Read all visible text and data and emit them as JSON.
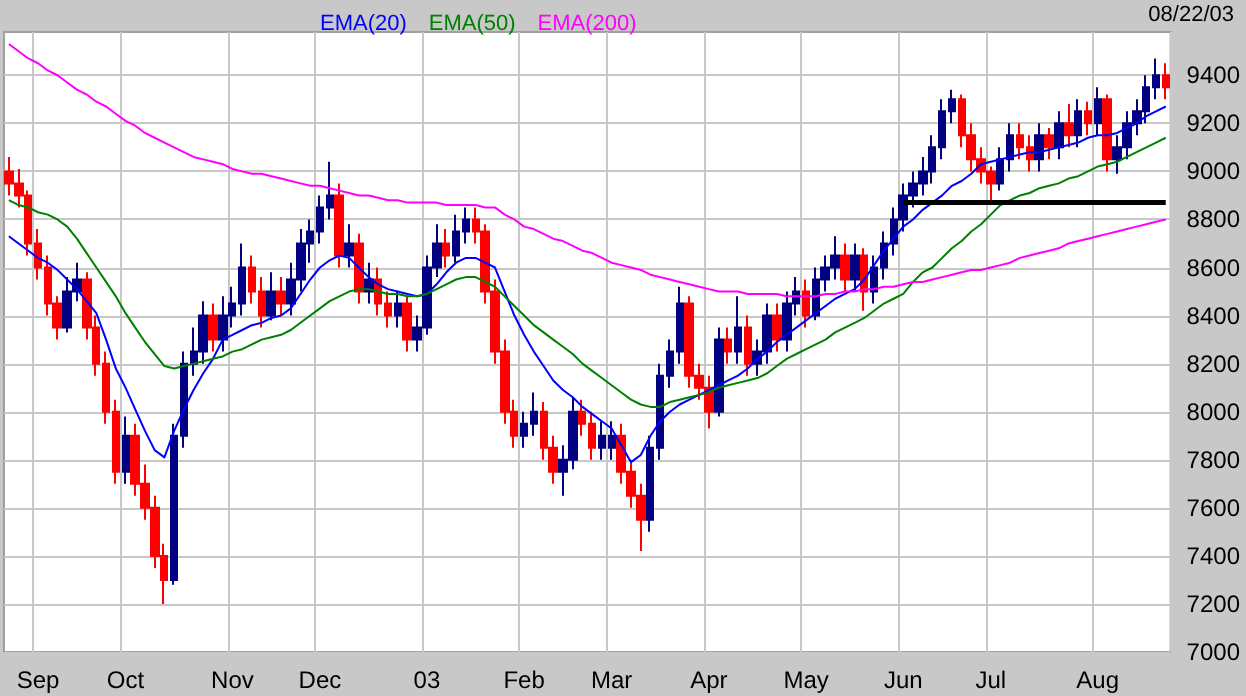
{
  "chart_data": {
    "type": "candlestick",
    "categories": [
      null,
      null,
      null,
      "Sep",
      null,
      null,
      null,
      null,
      null,
      null,
      null,
      null,
      "Oct",
      null,
      null,
      null,
      null,
      null,
      null,
      null,
      null,
      null,
      null,
      "Nov",
      null,
      null,
      null,
      null,
      null,
      null,
      null,
      null,
      "Dec",
      null,
      null,
      null,
      null,
      null,
      null,
      null,
      null,
      null,
      null,
      "03",
      null,
      null,
      null,
      null,
      null,
      null,
      null,
      null,
      null,
      "Feb",
      null,
      null,
      null,
      null,
      null,
      null,
      null,
      null,
      "Mar",
      null,
      null,
      null,
      null,
      null,
      null,
      null,
      null,
      null,
      "Apr",
      null,
      null,
      null,
      null,
      null,
      null,
      null,
      null,
      null,
      "May",
      null,
      null,
      null,
      null,
      null,
      null,
      null,
      null,
      null,
      "Jun",
      null,
      null,
      null,
      null,
      null,
      null,
      null,
      null,
      "Jul",
      null,
      null,
      null,
      null,
      null,
      null,
      null,
      null,
      null,
      null,
      "Aug",
      null,
      null,
      null,
      null,
      null,
      null,
      null
    ],
    "ohlc": [
      [
        9000,
        9060,
        8900,
        8950
      ],
      [
        8950,
        9010,
        8850,
        8900
      ],
      [
        8900,
        8920,
        8650,
        8700
      ],
      [
        8700,
        8760,
        8550,
        8600
      ],
      [
        8600,
        8650,
        8400,
        8450
      ],
      [
        8450,
        8480,
        8300,
        8350
      ],
      [
        8350,
        8560,
        8330,
        8500
      ],
      [
        8500,
        8620,
        8460,
        8550
      ],
      [
        8550,
        8580,
        8300,
        8350
      ],
      [
        8350,
        8400,
        8150,
        8200
      ],
      [
        8200,
        8250,
        7950,
        8000
      ],
      [
        8000,
        8050,
        7700,
        7750
      ],
      [
        7750,
        7980,
        7700,
        7900
      ],
      [
        7900,
        7950,
        7650,
        7700
      ],
      [
        7700,
        7780,
        7550,
        7600
      ],
      [
        7600,
        7650,
        7350,
        7400
      ],
      [
        7400,
        7450,
        7200,
        7300
      ],
      [
        7300,
        7950,
        7280,
        7900
      ],
      [
        7900,
        8250,
        7850,
        8200
      ],
      [
        8200,
        8350,
        8150,
        8250
      ],
      [
        8250,
        8460,
        8200,
        8400
      ],
      [
        8400,
        8450,
        8250,
        8300
      ],
      [
        8300,
        8480,
        8250,
        8400
      ],
      [
        8400,
        8520,
        8350,
        8450
      ],
      [
        8450,
        8700,
        8400,
        8600
      ],
      [
        8600,
        8650,
        8450,
        8500
      ],
      [
        8500,
        8560,
        8350,
        8400
      ],
      [
        8400,
        8580,
        8380,
        8500
      ],
      [
        8500,
        8560,
        8400,
        8450
      ],
      [
        8450,
        8620,
        8400,
        8550
      ],
      [
        8550,
        8760,
        8500,
        8700
      ],
      [
        8700,
        8800,
        8620,
        8750
      ],
      [
        8750,
        8900,
        8700,
        8850
      ],
      [
        8850,
        9040,
        8800,
        8900
      ],
      [
        8900,
        8950,
        8600,
        8650
      ],
      [
        8650,
        8780,
        8600,
        8700
      ],
      [
        8700,
        8740,
        8450,
        8500
      ],
      [
        8500,
        8620,
        8450,
        8550
      ],
      [
        8550,
        8600,
        8400,
        8450
      ],
      [
        8450,
        8500,
        8350,
        8400
      ],
      [
        8400,
        8500,
        8350,
        8450
      ],
      [
        8450,
        8480,
        8250,
        8300
      ],
      [
        8300,
        8400,
        8250,
        8350
      ],
      [
        8350,
        8650,
        8320,
        8600
      ],
      [
        8600,
        8780,
        8560,
        8700
      ],
      [
        8700,
        8760,
        8600,
        8650
      ],
      [
        8650,
        8820,
        8620,
        8750
      ],
      [
        8750,
        8850,
        8700,
        8800
      ],
      [
        8800,
        8850,
        8700,
        8750
      ],
      [
        8750,
        8780,
        8450,
        8500
      ],
      [
        8500,
        8550,
        8200,
        8250
      ],
      [
        8250,
        8300,
        7950,
        8000
      ],
      [
        8000,
        8050,
        7850,
        7900
      ],
      [
        7900,
        8000,
        7850,
        7950
      ],
      [
        7950,
        8080,
        7900,
        8000
      ],
      [
        8000,
        8040,
        7800,
        7850
      ],
      [
        7850,
        7900,
        7700,
        7750
      ],
      [
        7750,
        7860,
        7650,
        7800
      ],
      [
        7800,
        8060,
        7760,
        8000
      ],
      [
        8000,
        8050,
        7900,
        7950
      ],
      [
        7950,
        8000,
        7800,
        7850
      ],
      [
        7850,
        7960,
        7800,
        7900
      ],
      [
        7850,
        7960,
        7800,
        7900
      ],
      [
        7900,
        7950,
        7700,
        7750
      ],
      [
        7750,
        7800,
        7600,
        7650
      ],
      [
        7650,
        7700,
        7420,
        7550
      ],
      [
        7550,
        7900,
        7500,
        7850
      ],
      [
        7850,
        8200,
        7800,
        8150
      ],
      [
        8150,
        8300,
        8100,
        8250
      ],
      [
        8250,
        8520,
        8200,
        8450
      ],
      [
        8450,
        8480,
        8100,
        8150
      ],
      [
        8150,
        8200,
        8050,
        8100
      ],
      [
        8100,
        8150,
        7930,
        8000
      ],
      [
        8000,
        8350,
        7980,
        8300
      ],
      [
        8300,
        8350,
        8200,
        8250
      ],
      [
        8250,
        8480,
        8200,
        8350
      ],
      [
        8350,
        8400,
        8150,
        8200
      ],
      [
        8200,
        8300,
        8150,
        8250
      ],
      [
        8250,
        8450,
        8200,
        8400
      ],
      [
        8400,
        8450,
        8250,
        8300
      ],
      [
        8300,
        8500,
        8250,
        8450
      ],
      [
        8450,
        8560,
        8400,
        8500
      ],
      [
        8500,
        8550,
        8350,
        8400
      ],
      [
        8400,
        8600,
        8380,
        8550
      ],
      [
        8550,
        8650,
        8500,
        8600
      ],
      [
        8600,
        8730,
        8550,
        8650
      ],
      [
        8650,
        8700,
        8500,
        8550
      ],
      [
        8550,
        8700,
        8500,
        8650
      ],
      [
        8650,
        8680,
        8420,
        8500
      ],
      [
        8500,
        8650,
        8450,
        8600
      ],
      [
        8600,
        8750,
        8550,
        8700
      ],
      [
        8700,
        8850,
        8650,
        8800
      ],
      [
        8800,
        8950,
        8750,
        8900
      ],
      [
        8900,
        9000,
        8850,
        8950
      ],
      [
        8950,
        9060,
        8900,
        9000
      ],
      [
        9000,
        9150,
        8950,
        9100
      ],
      [
        9100,
        9300,
        9050,
        9250
      ],
      [
        9250,
        9340,
        9200,
        9300
      ],
      [
        9300,
        9320,
        9100,
        9150
      ],
      [
        9150,
        9200,
        9000,
        9050
      ],
      [
        9050,
        9100,
        8950,
        9000
      ],
      [
        9000,
        9020,
        8870,
        8950
      ],
      [
        8950,
        9100,
        8920,
        9050
      ],
      [
        9050,
        9200,
        9000,
        9150
      ],
      [
        9150,
        9200,
        9050,
        9100
      ],
      [
        9100,
        9150,
        9000,
        9050
      ],
      [
        9050,
        9200,
        9000,
        9150
      ],
      [
        9150,
        9180,
        9050,
        9100
      ],
      [
        9100,
        9250,
        9050,
        9200
      ],
      [
        9200,
        9280,
        9100,
        9150
      ],
      [
        9150,
        9300,
        9100,
        9250
      ],
      [
        9250,
        9290,
        9150,
        9200
      ],
      [
        9200,
        9350,
        9150,
        9300
      ],
      [
        9300,
        9320,
        9000,
        9050
      ],
      [
        9050,
        9150,
        8990,
        9100
      ],
      [
        9100,
        9250,
        9050,
        9200
      ],
      [
        9200,
        9300,
        9150,
        9250
      ],
      [
        9250,
        9400,
        9200,
        9350
      ],
      [
        9350,
        9470,
        9300,
        9400
      ],
      [
        9400,
        9450,
        9300,
        9350
      ]
    ],
    "colors": [
      "#ff0000",
      "#ff0000",
      "#ff0000",
      "#ff0000",
      "#ff0000",
      "#ff0000",
      "#000080",
      "#000080",
      "#ff0000",
      "#ff0000",
      "#ff0000",
      "#ff0000",
      "#000080",
      "#ff0000",
      "#ff0000",
      "#ff0000",
      "#ff0000",
      "#000080",
      "#000080",
      "#000080",
      "#000080",
      "#ff0000",
      "#000080",
      "#000080",
      "#000080",
      "#ff0000",
      "#ff0000",
      "#000080",
      "#ff0000",
      "#000080",
      "#000080",
      "#000080",
      "#000080",
      "#000080",
      "#ff0000",
      "#000080",
      "#ff0000",
      "#000080",
      "#ff0000",
      "#ff0000",
      "#000080",
      "#ff0000",
      "#000080",
      "#000080",
      "#000080",
      "#ff0000",
      "#000080",
      "#000080",
      "#ff0000",
      "#ff0000",
      "#ff0000",
      "#ff0000",
      "#ff0000",
      "#000080",
      "#000080",
      "#ff0000",
      "#ff0000",
      "#000080",
      "#000080",
      "#ff0000",
      "#ff0000",
      "#000080",
      "#000080",
      "#ff0000",
      "#ff0000",
      "#ff0000",
      "#000080",
      "#000080",
      "#000080",
      "#000080",
      "#ff0000",
      "#ff0000",
      "#ff0000",
      "#000080",
      "#ff0000",
      "#000080",
      "#ff0000",
      "#000080",
      "#000080",
      "#ff0000",
      "#000080",
      "#000080",
      "#ff0000",
      "#000080",
      "#000080",
      "#000080",
      "#ff0000",
      "#000080",
      "#ff0000",
      "#000080",
      "#000080",
      "#000080",
      "#000080",
      "#000080",
      "#000080",
      "#000080",
      "#000080",
      "#000080",
      "#ff0000",
      "#ff0000",
      "#ff0000",
      "#ff0000",
      "#000080",
      "#000080",
      "#ff0000",
      "#ff0000",
      "#000080",
      "#ff0000",
      "#000080",
      "#ff0000",
      "#000080",
      "#ff0000",
      "#000080",
      "#ff0000",
      "#000080",
      "#000080",
      "#000080",
      "#000080",
      "#000080",
      "#ff0000"
    ],
    "series": [
      {
        "type": "line",
        "name": "EMA(20)",
        "color": "#0000ff",
        "values": [
          8730,
          8700,
          8670,
          8640,
          8620,
          8590,
          8550,
          8510,
          8460,
          8410,
          8300,
          8180,
          8100,
          8010,
          7920,
          7840,
          7810,
          7920,
          8010,
          8090,
          8160,
          8220,
          8300,
          8320,
          8340,
          8360,
          8370,
          8390,
          8400,
          8430,
          8490,
          8550,
          8600,
          8630,
          8650,
          8640,
          8600,
          8560,
          8530,
          8510,
          8500,
          8490,
          8480,
          8490,
          8530,
          8580,
          8620,
          8640,
          8640,
          8620,
          8600,
          8500,
          8400,
          8320,
          8250,
          8190,
          8130,
          8090,
          8060,
          8020,
          7990,
          7960,
          7930,
          7860,
          7790,
          7820,
          7900,
          7960,
          8000,
          8030,
          8050,
          8070,
          8090,
          8110,
          8130,
          8150,
          8180,
          8220,
          8250,
          8290,
          8320,
          8350,
          8380,
          8410,
          8440,
          8470,
          8490,
          8510,
          8550,
          8610,
          8670,
          8720,
          8770,
          8800,
          8840,
          8870,
          8900,
          8940,
          8960,
          8990,
          9030,
          9040,
          9050,
          9060,
          9070,
          9080,
          9080,
          9090,
          9100,
          9110,
          9120,
          9140,
          9150,
          9150,
          9160,
          9180,
          9200,
          9230,
          9250,
          9270
        ]
      },
      {
        "type": "line",
        "name": "EMA(50)",
        "color": "#008000",
        "values": [
          8880,
          8860,
          8850,
          8830,
          8820,
          8800,
          8770,
          8720,
          8660,
          8600,
          8540,
          8480,
          8410,
          8350,
          8290,
          8240,
          8190,
          8180,
          8190,
          8200,
          8210,
          8220,
          8230,
          8250,
          8260,
          8280,
          8300,
          8310,
          8320,
          8340,
          8370,
          8400,
          8430,
          8460,
          8480,
          8500,
          8510,
          8510,
          8500,
          8490,
          8490,
          8480,
          8480,
          8490,
          8510,
          8530,
          8550,
          8560,
          8560,
          8540,
          8520,
          8480,
          8440,
          8400,
          8360,
          8330,
          8300,
          8270,
          8240,
          8200,
          8170,
          8140,
          8110,
          8080,
          8050,
          8030,
          8020,
          8020,
          8040,
          8050,
          8060,
          8070,
          8080,
          8100,
          8110,
          8120,
          8130,
          8140,
          8160,
          8190,
          8220,
          8240,
          8260,
          8280,
          8300,
          8330,
          8350,
          8370,
          8390,
          8420,
          8450,
          8470,
          8490,
          8540,
          8580,
          8600,
          8640,
          8680,
          8710,
          8750,
          8780,
          8820,
          8860,
          8880,
          8900,
          8910,
          8930,
          8940,
          8950,
          8970,
          8980,
          9000,
          9020,
          9030,
          9040,
          9060,
          9080,
          9100,
          9120,
          9140
        ]
      },
      {
        "type": "line",
        "name": "EMA(200)",
        "color": "#ff00ff",
        "values": [
          9530,
          9500,
          9470,
          9450,
          9420,
          9400,
          9370,
          9340,
          9320,
          9290,
          9270,
          9240,
          9210,
          9190,
          9160,
          9140,
          9120,
          9100,
          9080,
          9060,
          9050,
          9040,
          9030,
          9010,
          9000,
          8990,
          8990,
          8980,
          8970,
          8960,
          8950,
          8940,
          8940,
          8930,
          8920,
          8910,
          8900,
          8900,
          8890,
          8880,
          8880,
          8870,
          8870,
          8870,
          8870,
          8860,
          8860,
          8860,
          8860,
          8850,
          8850,
          8820,
          8800,
          8770,
          8760,
          8740,
          8720,
          8710,
          8690,
          8670,
          8660,
          8640,
          8620,
          8610,
          8600,
          8590,
          8570,
          8560,
          8550,
          8540,
          8530,
          8520,
          8510,
          8500,
          8500,
          8500,
          8490,
          8490,
          8490,
          8490,
          8480,
          8480,
          8480,
          8480,
          8490,
          8490,
          8500,
          8500,
          8510,
          8510,
          8520,
          8520,
          8530,
          8540,
          8540,
          8550,
          8560,
          8570,
          8580,
          8590,
          8590,
          8600,
          8610,
          8620,
          8640,
          8650,
          8660,
          8670,
          8680,
          8700,
          8710,
          8720,
          8730,
          8740,
          8750,
          8760,
          8770,
          8780,
          8790,
          8800
        ]
      },
      {
        "type": "line",
        "color": "#000000",
        "values": [
          null,
          null,
          null,
          null,
          null,
          null,
          null,
          null,
          null,
          null,
          null,
          null,
          null,
          null,
          null,
          null,
          null,
          null,
          null,
          null,
          null,
          null,
          null,
          null,
          null,
          null,
          null,
          null,
          null,
          null,
          null,
          null,
          null,
          null,
          null,
          null,
          null,
          null,
          null,
          null,
          null,
          null,
          null,
          null,
          null,
          null,
          null,
          null,
          null,
          null,
          null,
          null,
          null,
          null,
          null,
          null,
          null,
          null,
          null,
          null,
          null,
          null,
          null,
          null,
          null,
          null,
          null,
          null,
          null,
          null,
          null,
          null,
          null,
          null,
          null,
          null,
          null,
          null,
          null,
          null,
          null,
          null,
          null,
          null,
          null,
          null,
          null,
          null,
          null,
          null,
          null,
          null,
          8870,
          8870,
          8870,
          8870,
          8870,
          8870,
          8870,
          8870,
          8870,
          8870,
          8870,
          8870,
          8870,
          8870,
          8870,
          8870,
          8870,
          8870,
          8870,
          8870,
          8870,
          8870,
          8870,
          8870,
          8870,
          8870,
          8870,
          8870
        ]
      }
    ],
    "ylim": [
      7000,
      9580
    ],
    "yticks": [
      7000,
      7200,
      7400,
      7600,
      7800,
      8000,
      8200,
      8400,
      8600,
      8800,
      9000,
      9200,
      9400
    ],
    "grid": true,
    "legend": "top left",
    "marker": "none",
    "annotations": [
      "08/22/03"
    ]
  }
}
